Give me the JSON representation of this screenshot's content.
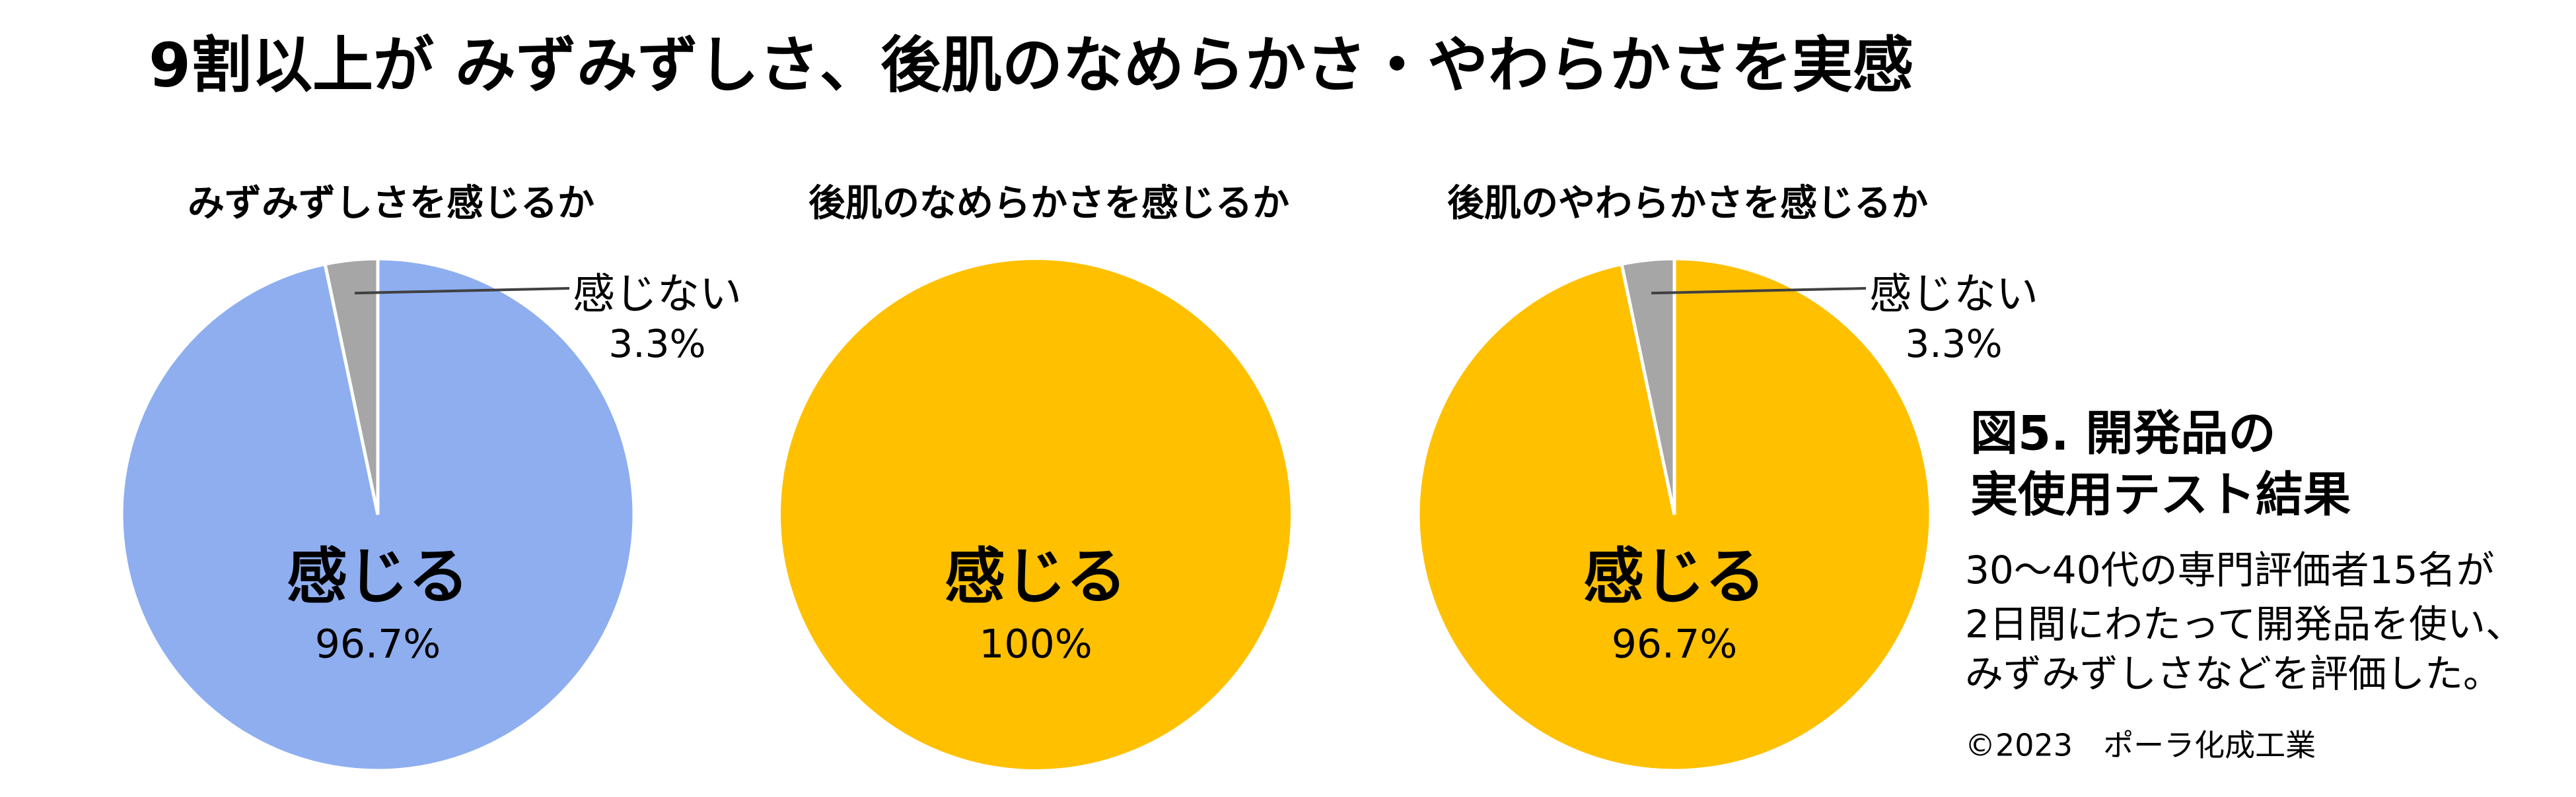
{
  "title": "9割以上が みずみずしさ、後肌のなめらかさ・やわらかさを実感",
  "chart_data": [
    {
      "type": "pie",
      "title": "みずみずしさを感じるか",
      "categories": [
        "感じる",
        "感じない"
      ],
      "values": [
        96.7,
        3.3
      ],
      "value_labels": [
        "96.7%",
        "3.3%"
      ],
      "colors": [
        "#8eaef0",
        "#a6a6a6"
      ]
    },
    {
      "type": "pie",
      "title": "後肌のなめらかさを感じるか",
      "categories": [
        "感じる"
      ],
      "values": [
        100
      ],
      "value_labels": [
        "100%"
      ],
      "colors": [
        "#ffc000"
      ]
    },
    {
      "type": "pie",
      "title": "後肌のやわらかさを感じるか",
      "categories": [
        "感じる",
        "感じない"
      ],
      "values": [
        96.7,
        3.3
      ],
      "value_labels": [
        "96.7%",
        "3.3%"
      ],
      "colors": [
        "#ffc000",
        "#a6a6a6"
      ]
    }
  ],
  "caption": {
    "heading": [
      "図5. 開発品の",
      "実使用テスト結果"
    ],
    "lines": [
      "30～40代の専門評価者15名が",
      "2日間にわたって開発品を使い、",
      "みずみずしさなどを評価した。"
    ]
  },
  "copyright": "©2023　ポーラ化成工業"
}
